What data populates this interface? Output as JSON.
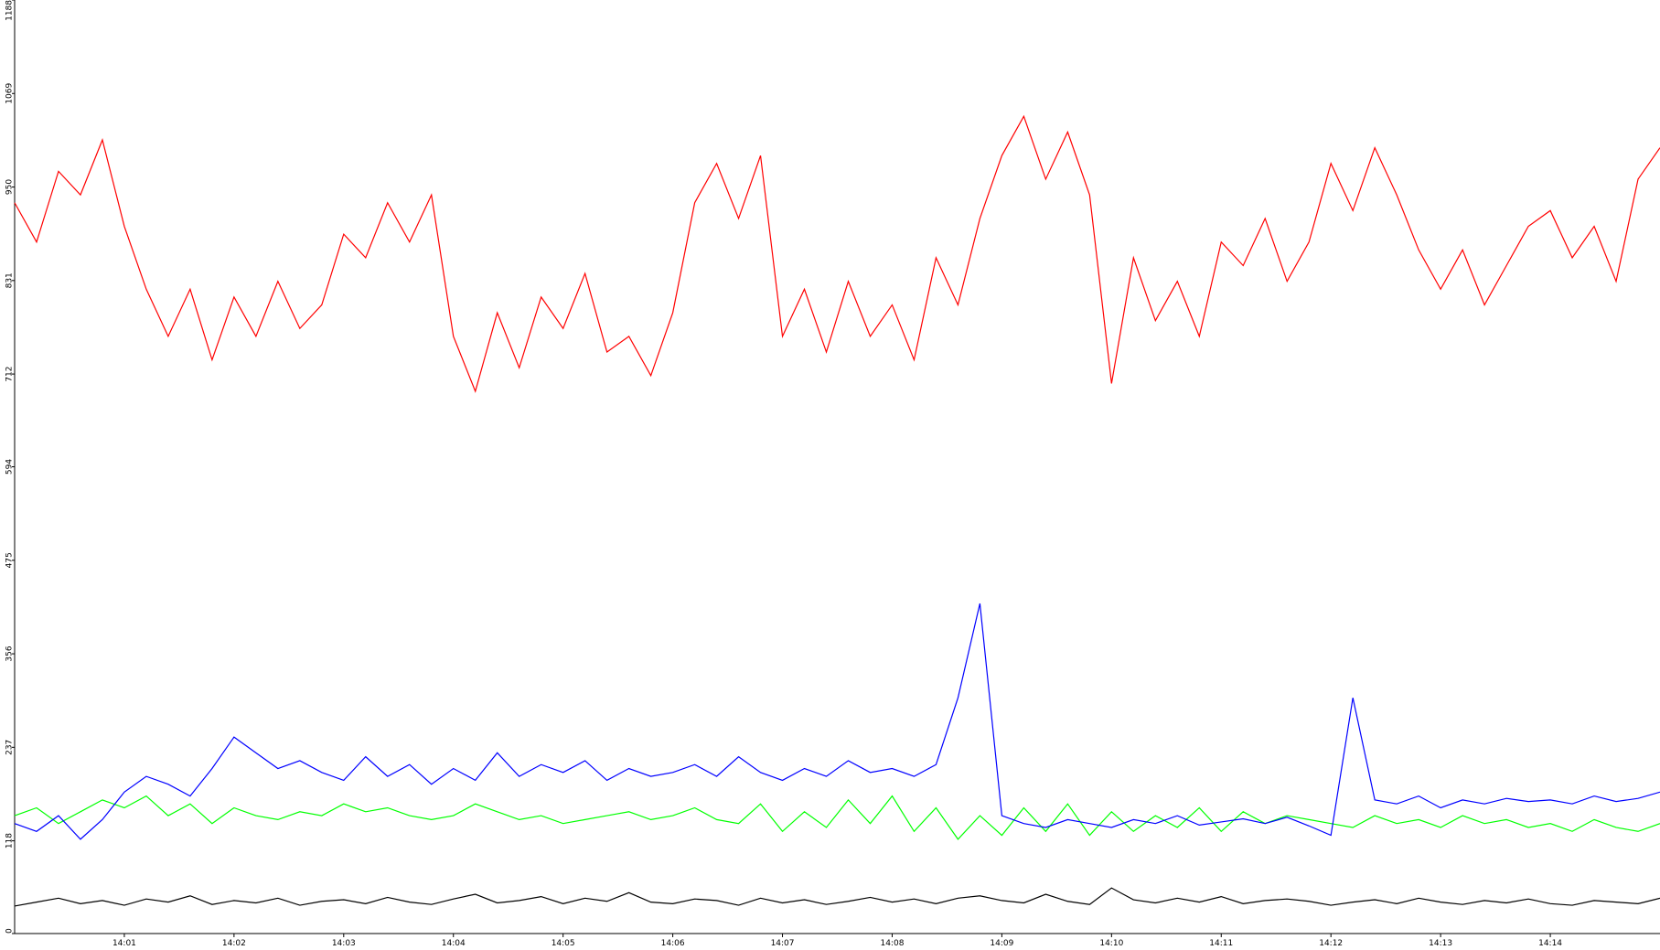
{
  "chart_data": {
    "type": "line",
    "x": [
      840.0,
      840.2,
      840.4,
      840.6,
      840.8,
      841.0,
      841.2,
      841.4,
      841.6,
      841.8,
      842.0,
      842.2,
      842.4,
      842.6,
      842.8,
      843.0,
      843.2,
      843.4,
      843.6,
      843.8,
      844.0,
      844.2,
      844.4,
      844.6,
      844.8,
      845.0,
      845.2,
      845.4,
      845.6,
      845.8,
      846.0,
      846.2,
      846.4,
      846.6,
      846.8,
      847.0,
      847.2,
      847.4,
      847.6,
      847.8,
      848.0,
      848.2,
      848.4,
      848.6,
      848.8,
      849.0,
      849.2,
      849.4,
      849.6,
      849.8,
      850.0,
      850.2,
      850.4,
      850.6,
      850.8,
      851.0,
      851.2,
      851.4,
      851.6,
      851.8,
      852.0,
      852.2,
      852.4,
      852.6,
      852.8,
      853.0,
      853.2,
      853.4,
      853.6,
      853.8,
      854.0,
      854.2,
      854.4,
      854.6,
      854.8,
      855.0
    ],
    "series": [
      {
        "color": "#ff0000",
        "values": [
          930,
          880,
          970,
          940,
          1010,
          900,
          820,
          760,
          820,
          730,
          810,
          760,
          830,
          770,
          800,
          890,
          860,
          930,
          880,
          940,
          760,
          690,
          790,
          720,
          810,
          770,
          840,
          740,
          760,
          710,
          790,
          930,
          980,
          910,
          990,
          760,
          820,
          740,
          830,
          760,
          800,
          730,
          860,
          800,
          910,
          990,
          1040,
          960,
          1020,
          940,
          700,
          860,
          780,
          830,
          760,
          880,
          850,
          910,
          830,
          880,
          980,
          920,
          1000,
          940,
          870,
          820,
          870,
          800,
          850,
          900,
          920,
          860,
          900,
          830,
          960,
          1000
        ]
      },
      {
        "color": "#00ff00",
        "values": [
          150,
          160,
          140,
          155,
          170,
          160,
          175,
          150,
          165,
          140,
          160,
          150,
          145,
          155,
          150,
          165,
          155,
          160,
          150,
          145,
          150,
          165,
          155,
          145,
          150,
          140,
          145,
          150,
          155,
          145,
          150,
          160,
          145,
          140,
          165,
          130,
          155,
          135,
          170,
          140,
          175,
          130,
          160,
          120,
          150,
          125,
          160,
          130,
          165,
          125,
          155,
          130,
          150,
          135,
          160,
          130,
          155,
          140,
          150,
          145,
          140,
          135,
          150,
          140,
          145,
          135,
          150,
          140,
          145,
          135,
          140,
          130,
          145,
          135,
          130,
          140
        ]
      },
      {
        "color": "#0000ff",
        "values": [
          140,
          130,
          150,
          120,
          145,
          180,
          200,
          190,
          175,
          210,
          250,
          230,
          210,
          220,
          205,
          195,
          225,
          200,
          215,
          190,
          210,
          195,
          230,
          200,
          215,
          205,
          220,
          195,
          210,
          200,
          205,
          215,
          200,
          225,
          205,
          195,
          210,
          200,
          220,
          205,
          210,
          200,
          215,
          300,
          420,
          150,
          140,
          135,
          145,
          140,
          135,
          145,
          140,
          150,
          138,
          142,
          146,
          140,
          148,
          137,
          125,
          300,
          170,
          165,
          175,
          160,
          170,
          165,
          172,
          168,
          170,
          165,
          175,
          168,
          172,
          180
        ]
      },
      {
        "color": "#000000",
        "values": [
          35,
          40,
          45,
          38,
          42,
          36,
          44,
          40,
          48,
          37,
          42,
          39,
          45,
          36,
          41,
          43,
          38,
          46,
          40,
          37,
          44,
          50,
          39,
          42,
          47,
          38,
          45,
          41,
          52,
          40,
          38,
          44,
          42,
          36,
          45,
          39,
          43,
          37,
          41,
          46,
          40,
          44,
          38,
          45,
          48,
          42,
          39,
          50,
          41,
          37,
          58,
          43,
          39,
          45,
          40,
          47,
          38,
          42,
          44,
          41,
          36,
          40,
          43,
          38,
          45,
          40,
          37,
          42,
          39,
          44,
          38,
          36,
          42,
          40,
          38,
          45
        ]
      }
    ],
    "xlim": [
      840,
      855
    ],
    "xticks": [
      {
        "value": 841,
        "label": "14:01"
      },
      {
        "value": 842,
        "label": "14:02"
      },
      {
        "value": 843,
        "label": "14:03"
      },
      {
        "value": 844,
        "label": "14:04"
      },
      {
        "value": 845,
        "label": "14:05"
      },
      {
        "value": 846,
        "label": "14:06"
      },
      {
        "value": 847,
        "label": "14:07"
      },
      {
        "value": 848,
        "label": "14:08"
      },
      {
        "value": 849,
        "label": "14:09"
      },
      {
        "value": 850,
        "label": "14:10"
      },
      {
        "value": 851,
        "label": "14:11"
      },
      {
        "value": 852,
        "label": "14:12"
      },
      {
        "value": 853,
        "label": "14:13"
      },
      {
        "value": 854,
        "label": "14:14"
      }
    ],
    "ylim": [
      0,
      1188
    ],
    "yticks": [
      0,
      118,
      237,
      356,
      475,
      594,
      712,
      831,
      950,
      1069,
      1188
    ]
  }
}
